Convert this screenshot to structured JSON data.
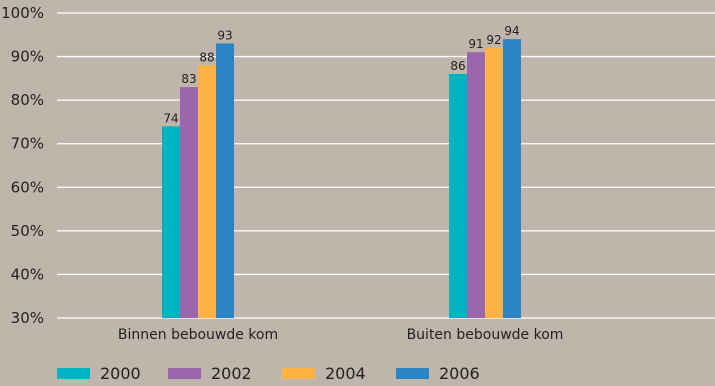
{
  "colors": {
    "background": "#bfb5ab",
    "grid": "#ffffff"
  },
  "chart_data": {
    "type": "bar",
    "categories": [
      "Binnen bebouwde kom",
      "Buiten bebouwde kom"
    ],
    "series": [
      {
        "name": "2000",
        "values": [
          74,
          86
        ],
        "color": "#00b3c2"
      },
      {
        "name": "2002",
        "values": [
          83,
          91
        ],
        "color": "#9a66ad"
      },
      {
        "name": "2004",
        "values": [
          88,
          92
        ],
        "color": "#ffb347"
      },
      {
        "name": "2006",
        "values": [
          93,
          94
        ],
        "color": "#2b84c6"
      }
    ],
    "ylim": [
      30,
      100
    ],
    "yticks": [
      30,
      40,
      50,
      60,
      70,
      80,
      90,
      100
    ],
    "ytick_labels": [
      "30%",
      "40%",
      "50%",
      "60%",
      "70%",
      "80%",
      "90%",
      "100%"
    ],
    "grid": true,
    "data_labels": true,
    "legend_position": "bottom"
  }
}
